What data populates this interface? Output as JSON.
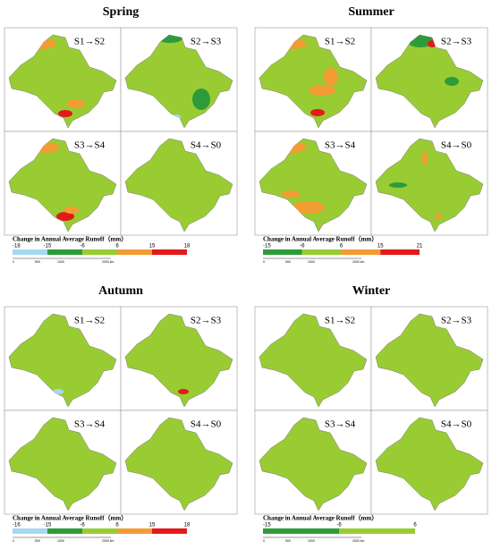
{
  "panels": [
    {
      "title": "Spring",
      "maps": [
        "S1→S2",
        "S2→S3",
        "S3→S4",
        "S4→S0"
      ],
      "legend": {
        "title": "Change in Annual Average Runoff（mm）",
        "ticks": [
          -18,
          -15,
          -6,
          6,
          15,
          18
        ],
        "colors": [
          "#a6d8f0",
          "#2e9b3a",
          "#99cc33",
          "#f39c34",
          "#e31a1c"
        ]
      },
      "scale": [
        "0",
        "500",
        "1000",
        "2000 km"
      ]
    },
    {
      "title": "Summer",
      "maps": [
        "S1→S2",
        "S2→S3",
        "S3→S4",
        "S4→S0"
      ],
      "legend": {
        "title": "Change in Annual Average Runoff（mm）",
        "ticks": [
          -15,
          -6,
          6,
          15,
          21
        ],
        "colors": [
          "#2e9b3a",
          "#99cc33",
          "#f39c34",
          "#e31a1c"
        ]
      },
      "scale": [
        "0",
        "500",
        "1000",
        "2000 km"
      ]
    },
    {
      "title": "Autumn",
      "maps": [
        "S1→S2",
        "S2→S3",
        "S3→S4",
        "S4→S0"
      ],
      "legend": {
        "title": "Change in Annual Average Runoff（mm）",
        "ticks": [
          -16,
          -15,
          -6,
          6,
          15,
          18
        ],
        "colors": [
          "#a6d8f0",
          "#2e9b3a",
          "#99cc33",
          "#f39c34",
          "#e31a1c"
        ]
      },
      "scale": [
        "0",
        "500",
        "1000",
        "2000 km"
      ]
    },
    {
      "title": "Winter",
      "maps": [
        "S1→S2",
        "S2→S3",
        "S3→S4",
        "S4→S0"
      ],
      "legend": {
        "title": "Change in Annual Average Runoff（mm）",
        "ticks": [
          -15,
          -6,
          6
        ],
        "colors": [
          "#2e9b3a",
          "#99cc33"
        ]
      },
      "scale": [
        "0",
        "500",
        "1000",
        "2000 km"
      ]
    }
  ]
}
